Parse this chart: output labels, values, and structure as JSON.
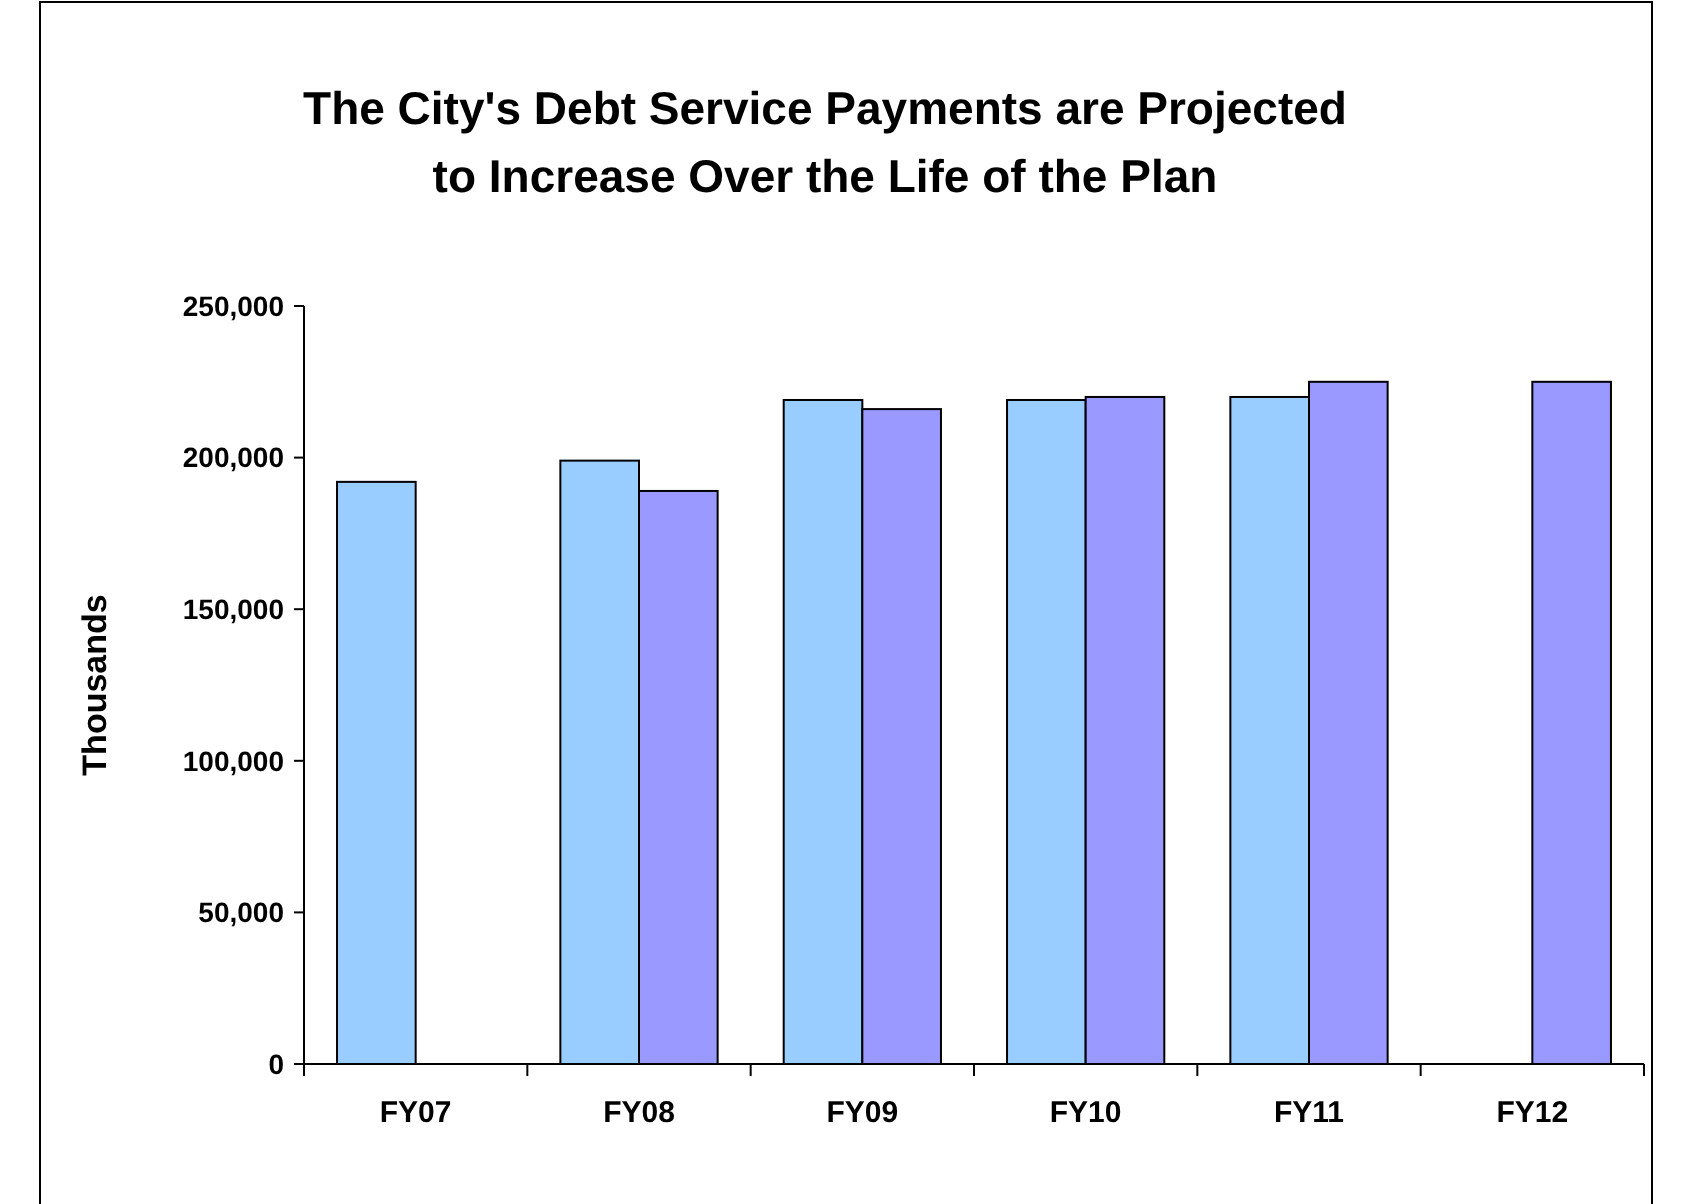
{
  "chart_data": {
    "type": "bar",
    "title": "The City's Debt Service Payments are Projected to Increase Over the Life of the Plan",
    "ylabel": "Thousands",
    "categories": [
      "FY07",
      "FY08",
      "FY09",
      "FY10",
      "FY11",
      "FY12"
    ],
    "series": [
      {
        "color": "#99ccff",
        "values": [
          192000,
          199000,
          219000,
          219000,
          220000,
          null
        ]
      },
      {
        "color": "#9999ff",
        "values": [
          null,
          189000,
          216000,
          220000,
          225000,
          225000
        ]
      }
    ],
    "ylim": [
      0,
      250000
    ],
    "yticks": [
      {
        "value": 0,
        "label": "0"
      },
      {
        "value": 50000,
        "label": "50,000"
      },
      {
        "value": 100000,
        "label": "100,000"
      },
      {
        "value": 150000,
        "label": "150,000"
      },
      {
        "value": 200000,
        "label": "200,000"
      },
      {
        "value": 250000,
        "label": "250,000"
      }
    ],
    "grid": false
  }
}
